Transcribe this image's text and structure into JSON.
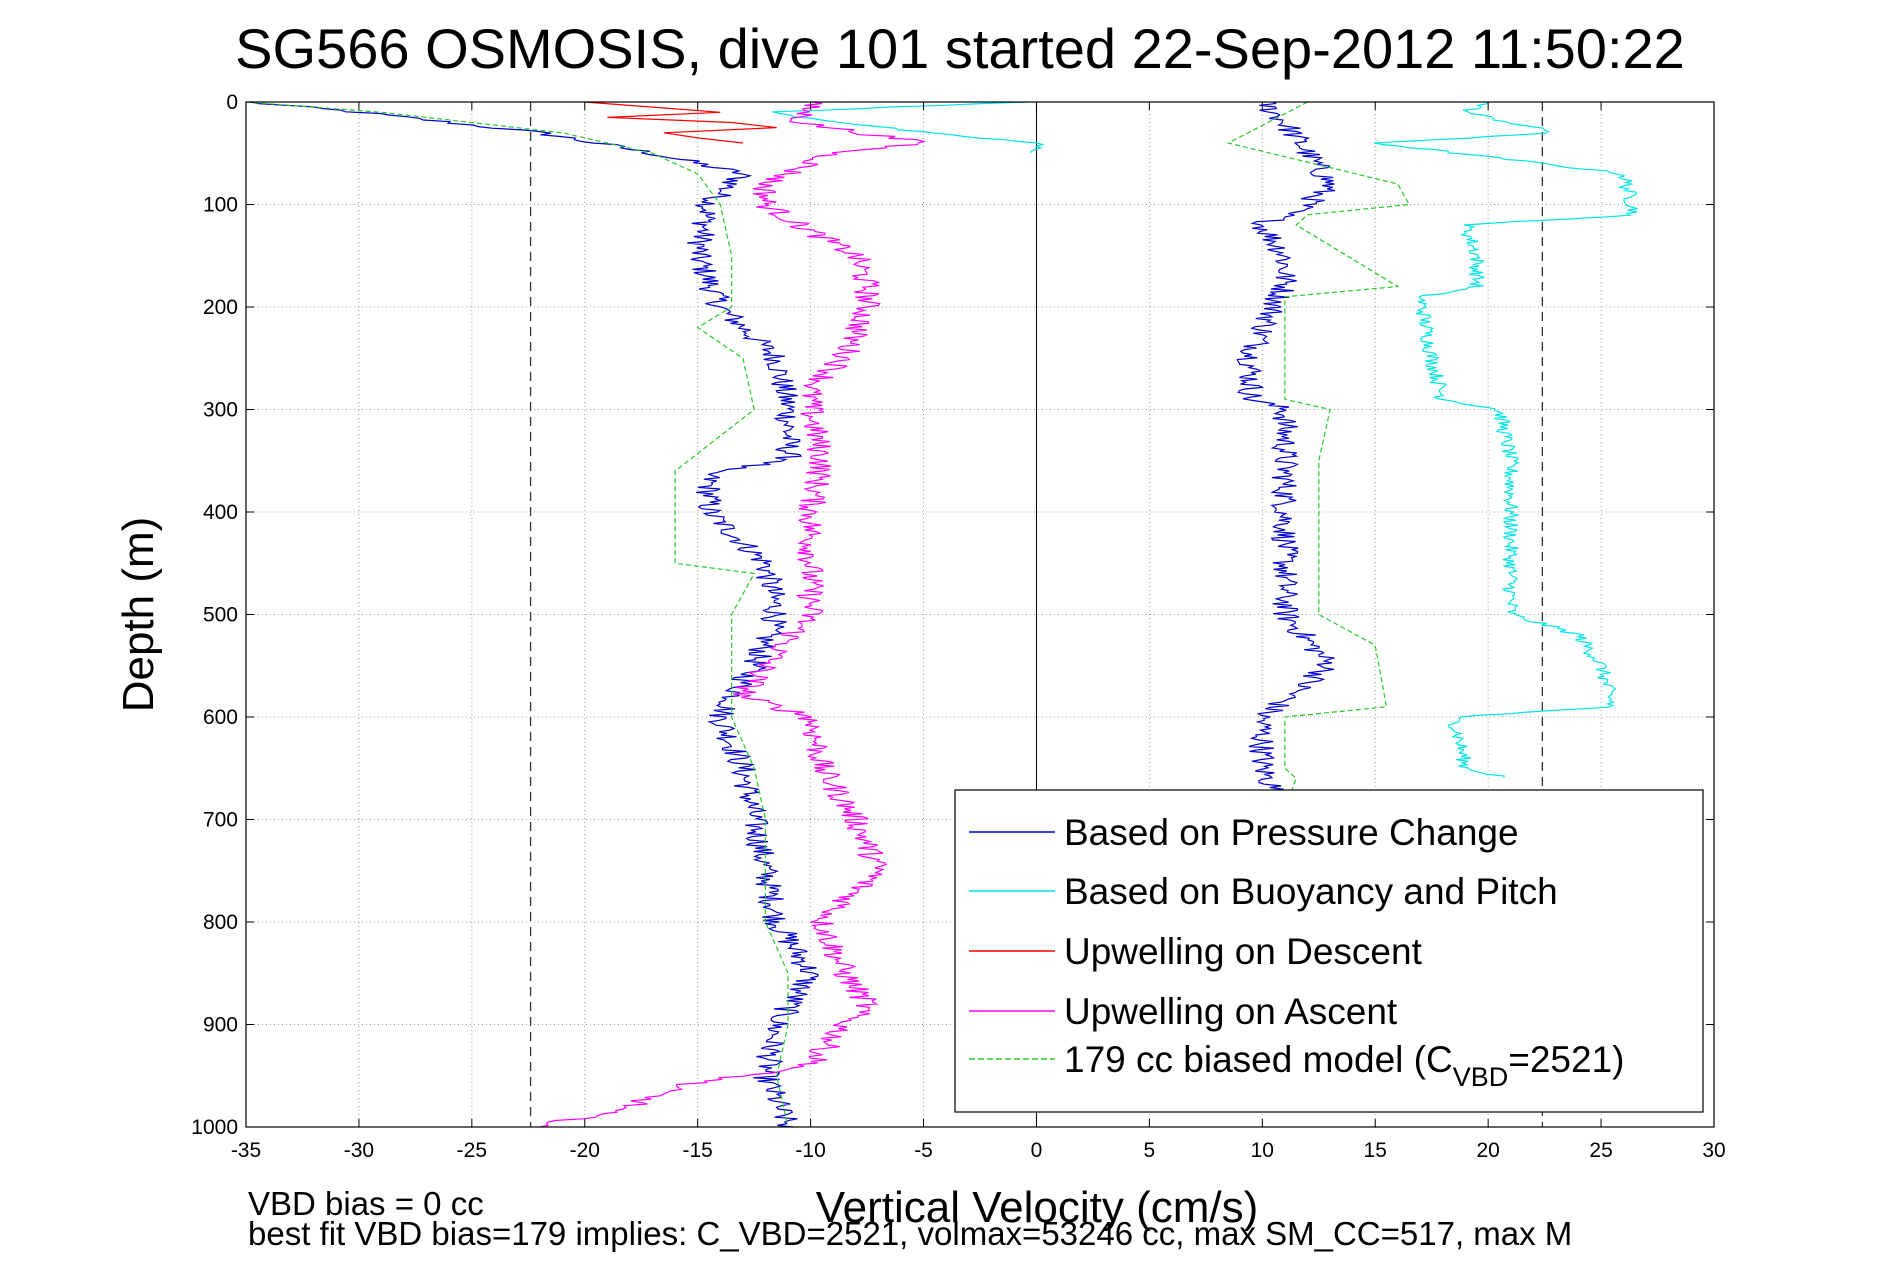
{
  "chart_data": {
    "type": "line",
    "title": "SG566 OSMOSIS, dive 101 started 22-Sep-2012 11:50:22",
    "xlabel": "Vertical Velocity (cm/s)",
    "ylabel": "Depth (m)",
    "xlim": [
      -35,
      30
    ],
    "ylim": [
      0,
      1000
    ],
    "y_reversed": true,
    "grid": true,
    "xticks": [
      -35,
      -30,
      -25,
      -20,
      -15,
      -10,
      -5,
      0,
      5,
      10,
      15,
      20,
      25,
      30
    ],
    "yticks": [
      0,
      100,
      200,
      300,
      400,
      500,
      600,
      700,
      800,
      900,
      1000
    ],
    "xtick_labels": [
      "-35",
      "-30",
      "-25",
      "-20",
      "-15",
      "-10",
      "-5",
      "0",
      "5",
      "10",
      "15",
      "20",
      "25",
      "30"
    ],
    "ytick_labels": [
      "0",
      "100",
      "200",
      "300",
      "400",
      "500",
      "600",
      "700",
      "800",
      "900",
      "1000"
    ],
    "vertical_reference_lines": [
      -22.4,
      0,
      22.4
    ],
    "legend_placement": "lower-right",
    "series": [
      {
        "name": "Based on Pressure Change",
        "color": "#0000cc",
        "style": "solid",
        "depth": [
          0,
          10,
          30,
          50,
          70,
          100,
          150,
          200,
          250,
          300,
          350,
          360,
          400,
          450,
          500,
          550,
          600,
          650,
          700,
          800,
          850,
          900,
          950,
          1000
        ],
        "values": [
          -35,
          -30,
          -22,
          -17,
          -13,
          -14.5,
          -15,
          -14,
          -11.5,
          -11,
          -11,
          -14.5,
          -14.5,
          -12,
          -11.5,
          -12.5,
          -14,
          -13,
          -12.5,
          -11.5,
          -10,
          -11.5,
          -12,
          -11
        ]
      },
      {
        "name": "Based on Pressure Change",
        "color": "#0000cc",
        "style": "solid",
        "depth": [
          0,
          20,
          50,
          80,
          100,
          120,
          150,
          180,
          200,
          250,
          290,
          300,
          350,
          400,
          450,
          500,
          550,
          600,
          650,
          690
        ],
        "values": [
          10,
          11,
          12,
          13,
          12,
          10,
          11,
          11,
          10.5,
          9.5,
          9.5,
          11,
          11,
          11,
          11,
          11,
          13,
          10,
          10,
          11
        ]
      },
      {
        "name": "Based on Buoyancy and Pitch",
        "color": "#00e5e5",
        "style": "solid",
        "depth": [
          0,
          10,
          30,
          40,
          50
        ],
        "values": [
          -0.5,
          -12,
          -5,
          0,
          0
        ]
      },
      {
        "name": "Based on Buoyancy and Pitch",
        "color": "#00e5e5",
        "style": "solid",
        "depth": [
          0,
          10,
          30,
          40,
          70,
          110,
          120,
          150,
          180,
          190,
          250,
          290,
          300,
          350,
          400,
          450,
          500,
          520,
          550,
          590,
          600,
          650,
          660
        ],
        "values": [
          20,
          19,
          23,
          15,
          26,
          26.5,
          19,
          19.5,
          19.5,
          17,
          17.5,
          18,
          20.5,
          21,
          21,
          21,
          21,
          24,
          25,
          25.5,
          18.5,
          19,
          21
        ]
      },
      {
        "name": "Upwelling on Descent",
        "color": "#ff0000",
        "style": "solid",
        "depth": [
          0,
          5,
          10,
          15,
          20,
          25,
          30,
          35,
          40
        ],
        "values": [
          -20,
          -17,
          -14,
          -19,
          -13.5,
          -11.5,
          -16.5,
          -15,
          -13
        ]
      },
      {
        "name": "Upwelling on Ascent",
        "color": "#ff00ff",
        "style": "solid",
        "depth": [
          0,
          20,
          40,
          50,
          80,
          100,
          120,
          150,
          180,
          200,
          250,
          280,
          300,
          350,
          400,
          450,
          500,
          550,
          580,
          600,
          650,
          700,
          750,
          800,
          850,
          880,
          900,
          940,
          960,
          980,
          1000
        ],
        "values": [
          -10,
          -10.5,
          -5,
          -9,
          -12,
          -12,
          -10.5,
          -8,
          -7.5,
          -7.5,
          -8.5,
          -10,
          -10,
          -9.5,
          -10,
          -10,
          -10,
          -12,
          -13,
          -10,
          -9.5,
          -8,
          -7,
          -9.5,
          -8.5,
          -7.5,
          -8.5,
          -10,
          -16,
          -18,
          -22
        ]
      },
      {
        "name": "179 cc biased model (C VBD=2521)",
        "color": "#22cc22",
        "style": "dashed",
        "depth": [
          0,
          10,
          30,
          50,
          70,
          100,
          150,
          200,
          220,
          250,
          300,
          360,
          400,
          450,
          460,
          500,
          550,
          600,
          650,
          700,
          800,
          850,
          900,
          950,
          1000
        ],
        "values": [
          -35,
          -29,
          -21,
          -17,
          -15,
          -14,
          -13.5,
          -13.5,
          -15,
          -13,
          -12.5,
          -16,
          -16,
          -16,
          -12.5,
          -13.5,
          -13.5,
          -13.5,
          -12.5,
          -12,
          -12,
          -11,
          -11,
          -11.5,
          -11
        ]
      },
      {
        "name": "179 cc biased model (C VBD=2521)",
        "color": "#22cc22",
        "style": "dashed",
        "depth": [
          0,
          40,
          80,
          100,
          110,
          120,
          180,
          190,
          250,
          290,
          300,
          350,
          400,
          450,
          500,
          530,
          590,
          600,
          650,
          660,
          690
        ],
        "values": [
          12,
          8.5,
          16,
          16.5,
          12,
          11.5,
          16,
          11,
          11,
          11,
          13,
          12.5,
          12.5,
          12.5,
          12.5,
          15,
          15.5,
          11,
          11,
          11.5,
          11
        ]
      }
    ],
    "legend": {
      "entries": [
        {
          "label": "Based on Pressure Change",
          "color": "#0000cc",
          "style": "solid"
        },
        {
          "label": "Based on Buoyancy and Pitch",
          "color": "#00e5e5",
          "style": "solid"
        },
        {
          "label": "Upwelling on Descent",
          "color": "#ff0000",
          "style": "solid"
        },
        {
          "label": "Upwelling on Ascent",
          "color": "#ff00ff",
          "style": "solid"
        },
        {
          "label_prefix": "179 cc biased model (C",
          "label_sub": "VBD",
          "label_suffix": "=2521)",
          "color": "#22cc22",
          "style": "dashed"
        }
      ]
    },
    "footer": {
      "line1": "VBD bias = 0 cc",
      "line2": "best fit VBD bias=179 implies: C_VBD=2521, volmax=53246 cc, max SM_CC=517, max M"
    }
  }
}
